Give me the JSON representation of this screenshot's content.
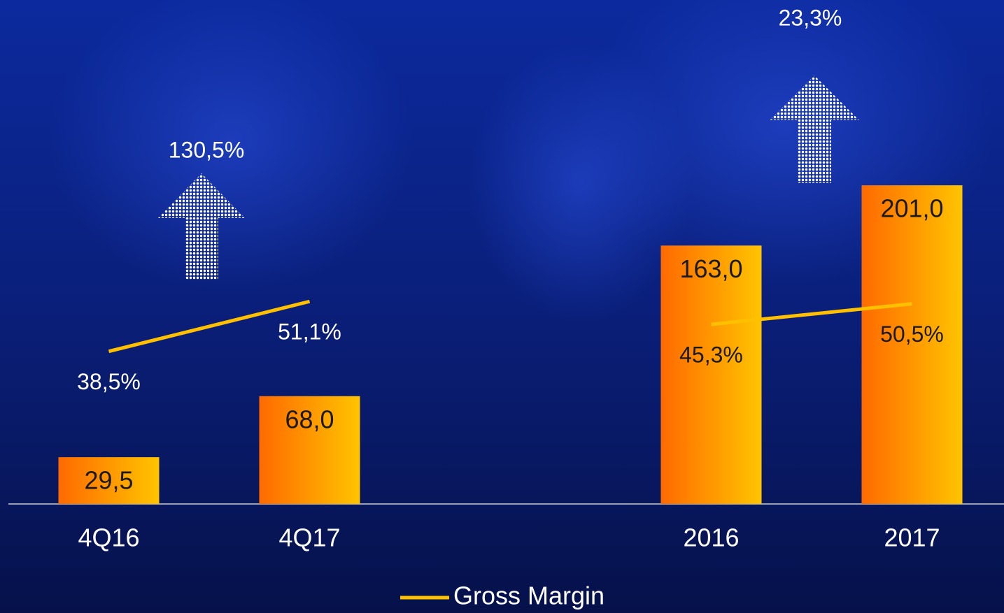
{
  "chart_data": {
    "type": "bar",
    "categories": [
      "4Q16",
      "4Q17",
      null,
      "2016",
      "2017"
    ],
    "ylim": [
      0,
      220
    ],
    "y2lim": [
      0,
      88
    ],
    "series": [
      {
        "type": "bar",
        "color": "#ff6a00",
        "color_to": "#ffc400",
        "values": [
          29.5,
          68.0,
          null,
          163.0,
          201.0
        ],
        "value_labels": [
          "29,5",
          "68,0",
          null,
          "163,0",
          "201,0"
        ]
      },
      {
        "type": "line",
        "name": "Gross Margin",
        "axis": "y2",
        "color": "#ffc000",
        "values": [
          38.5,
          51.1,
          null,
          45.3,
          50.5
        ],
        "value_labels": [
          "38,5%",
          "51,1%",
          null,
          "45,3%",
          "50,5%"
        ]
      }
    ],
    "annotations": [
      "130,5%",
      "23,3%"
    ],
    "legend": "bottom"
  }
}
